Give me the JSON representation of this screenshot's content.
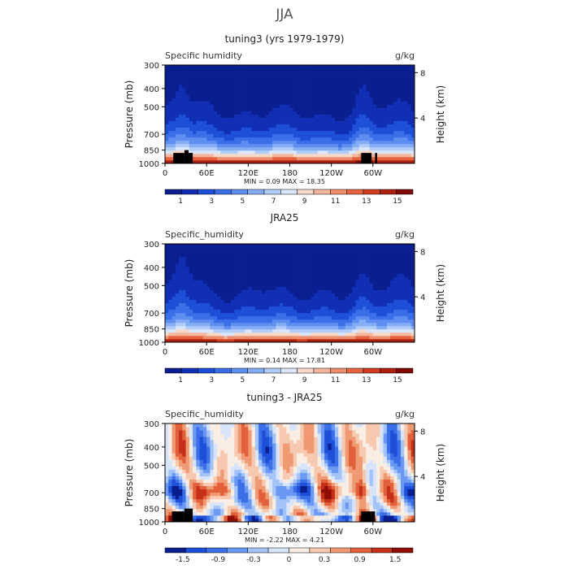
{
  "page_title": "JJA",
  "colors": {
    "seq": [
      "#0a1f8f",
      "#102fb5",
      "#1d4fd8",
      "#3b6fe8",
      "#5d8ef0",
      "#85adf5",
      "#b0ccf8",
      "#d9e6fb",
      "#f7d9c8",
      "#f4b79d",
      "#ef8e6a",
      "#e5643f",
      "#d23c20",
      "#ad1f0f",
      "#7f0b04"
    ],
    "div": [
      "#0a1f8f",
      "#1d4fd8",
      "#3b6fe8",
      "#6a98f2",
      "#a4c3f7",
      "#d7e4fb",
      "#faeee4",
      "#f7c9b0",
      "#ef9a73",
      "#e2613b",
      "#c5301a",
      "#8f0e05"
    ]
  },
  "chart_data": [
    {
      "type": "heatmap",
      "title": "tuning3 (yrs 1979-1979)",
      "left_label": "Specific humidity",
      "right_label": "g/kg",
      "ylabel": "Pressure (mb)",
      "y2label": "Height (km)",
      "xticks": [
        "0",
        "60E",
        "120E",
        "180",
        "120W",
        "60W"
      ],
      "xtick_lon": [
        0,
        60,
        120,
        180,
        240,
        300
      ],
      "xlim": [
        0,
        360
      ],
      "yticks": [
        300,
        400,
        500,
        700,
        850,
        1000
      ],
      "ylim": [
        1000,
        300
      ],
      "y2ticks": [
        8,
        4
      ],
      "stats": "MIN =    0.09   MAX =   18.35",
      "colorbar": {
        "palette": "seq",
        "labels": [
          "1",
          "3",
          "5",
          "7",
          "9",
          "11",
          "13",
          "15"
        ],
        "range": [
          0,
          16
        ]
      },
      "terrain": [
        [
          12,
          28,
          880
        ],
        [
          28,
          34,
          850
        ],
        [
          34,
          40,
          880
        ],
        [
          283,
          298,
          880
        ],
        [
          303,
          306,
          880
        ]
      ]
    },
    {
      "type": "heatmap",
      "title": "JRA25",
      "left_label": "Specific_humidity",
      "right_label": "g/kg",
      "ylabel": "Pressure (mb)",
      "y2label": "Height (km)",
      "xticks": [
        "0",
        "60E",
        "120E",
        "180",
        "120W",
        "60W"
      ],
      "xtick_lon": [
        0,
        60,
        120,
        180,
        240,
        300
      ],
      "xlim": [
        0,
        360
      ],
      "yticks": [
        300,
        400,
        500,
        700,
        850,
        1000
      ],
      "ylim": [
        1000,
        300
      ],
      "y2ticks": [
        8,
        4
      ],
      "stats": "MIN =    0.14   MAX =   17.81",
      "colorbar": {
        "palette": "seq",
        "labels": [
          "1",
          "3",
          "5",
          "7",
          "9",
          "11",
          "13",
          "15"
        ],
        "range": [
          0,
          16
        ]
      },
      "terrain": []
    },
    {
      "type": "heatmap",
      "title": "tuning3 - JRA25",
      "left_label": "Specific_humidity",
      "right_label": "g/kg",
      "ylabel": "Pressure (mb)",
      "y2label": "Height (km)",
      "xticks": [
        "0",
        "60E",
        "120E",
        "180",
        "120W",
        "60W"
      ],
      "xtick_lon": [
        0,
        60,
        120,
        180,
        240,
        300
      ],
      "xlim": [
        0,
        360
      ],
      "yticks": [
        300,
        400,
        500,
        700,
        850,
        1000
      ],
      "ylim": [
        1000,
        300
      ],
      "y2ticks": [
        8,
        4
      ],
      "stats": "MIN =   -2.22   MAX =    4.21",
      "colorbar": {
        "palette": "div",
        "labels": [
          "-1.5",
          "-0.9",
          "-0.3",
          "0",
          "0.3",
          "0.9",
          "1.5"
        ],
        "range": [
          -2.1,
          2.1
        ]
      },
      "terrain": [
        [
          10,
          28,
          880
        ],
        [
          28,
          40,
          850
        ],
        [
          283,
          297,
          880
        ],
        [
          297,
          303,
          880
        ]
      ]
    }
  ]
}
